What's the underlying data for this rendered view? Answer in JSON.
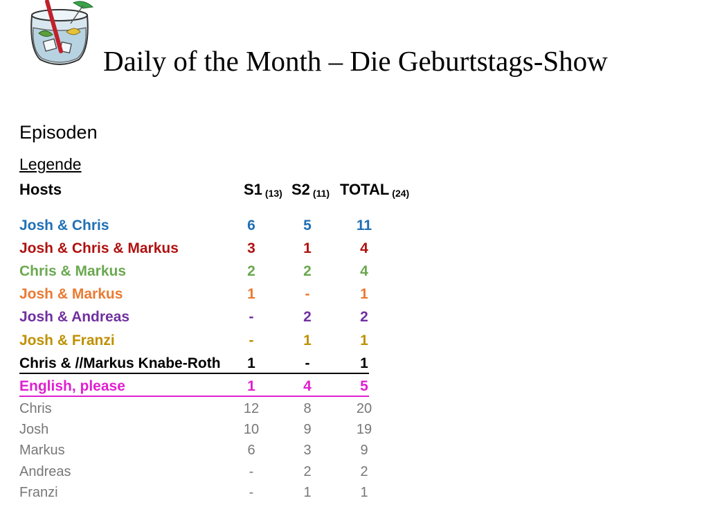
{
  "title": "Daily of the Month – Die Geburtstags-Show",
  "logo": {
    "icon": "cocktail-glass-icon"
  },
  "section_heading": "Episoden",
  "legend_heading": "Legende",
  "table": {
    "header": {
      "hosts": "Hosts",
      "s1": "S1",
      "s1_count": "(13)",
      "s2": "S2",
      "s2_count": "(11)",
      "total": "TOTAL",
      "total_count": "(24)"
    },
    "host_rows": [
      {
        "name": "Josh & Chris",
        "s1": "6",
        "s2": "5",
        "total": "11",
        "color": "#1f6fb4"
      },
      {
        "name": "Josh & Chris & Markus",
        "s1": "3",
        "s2": "1",
        "total": "4",
        "color": "#b01010"
      },
      {
        "name": "Chris & Markus",
        "s1": "2",
        "s2": "2",
        "total": "4",
        "color": "#6aa84f"
      },
      {
        "name": "Josh & Markus",
        "s1": "1",
        "s2": "-",
        "total": "1",
        "color": "#ea7a32"
      },
      {
        "name": "Josh & Andreas",
        "s1": "-",
        "s2": "2",
        "total": "2",
        "color": "#7030a0"
      },
      {
        "name": "Josh & Franzi",
        "s1": "-",
        "s2": "1",
        "total": "1",
        "color": "#bf9000"
      },
      {
        "name": "Chris & //Markus Knabe-Roth",
        "s1": "1",
        "s2": "-",
        "total": "1",
        "color": "#000000"
      },
      {
        "name": "English, please",
        "s1": "1",
        "s2": "4",
        "total": "5",
        "color": "#e020d0"
      }
    ],
    "person_rows": [
      {
        "name": "Chris",
        "s1": "12",
        "s2": "8",
        "total": "20"
      },
      {
        "name": "Josh",
        "s1": "10",
        "s2": "9",
        "total": "19"
      },
      {
        "name": "Markus",
        "s1": "6",
        "s2": "3",
        "total": "9"
      },
      {
        "name": "Andreas",
        "s1": "-",
        "s2": "2",
        "total": "2"
      },
      {
        "name": "Franzi",
        "s1": "-",
        "s2": "1",
        "total": "1"
      }
    ]
  }
}
